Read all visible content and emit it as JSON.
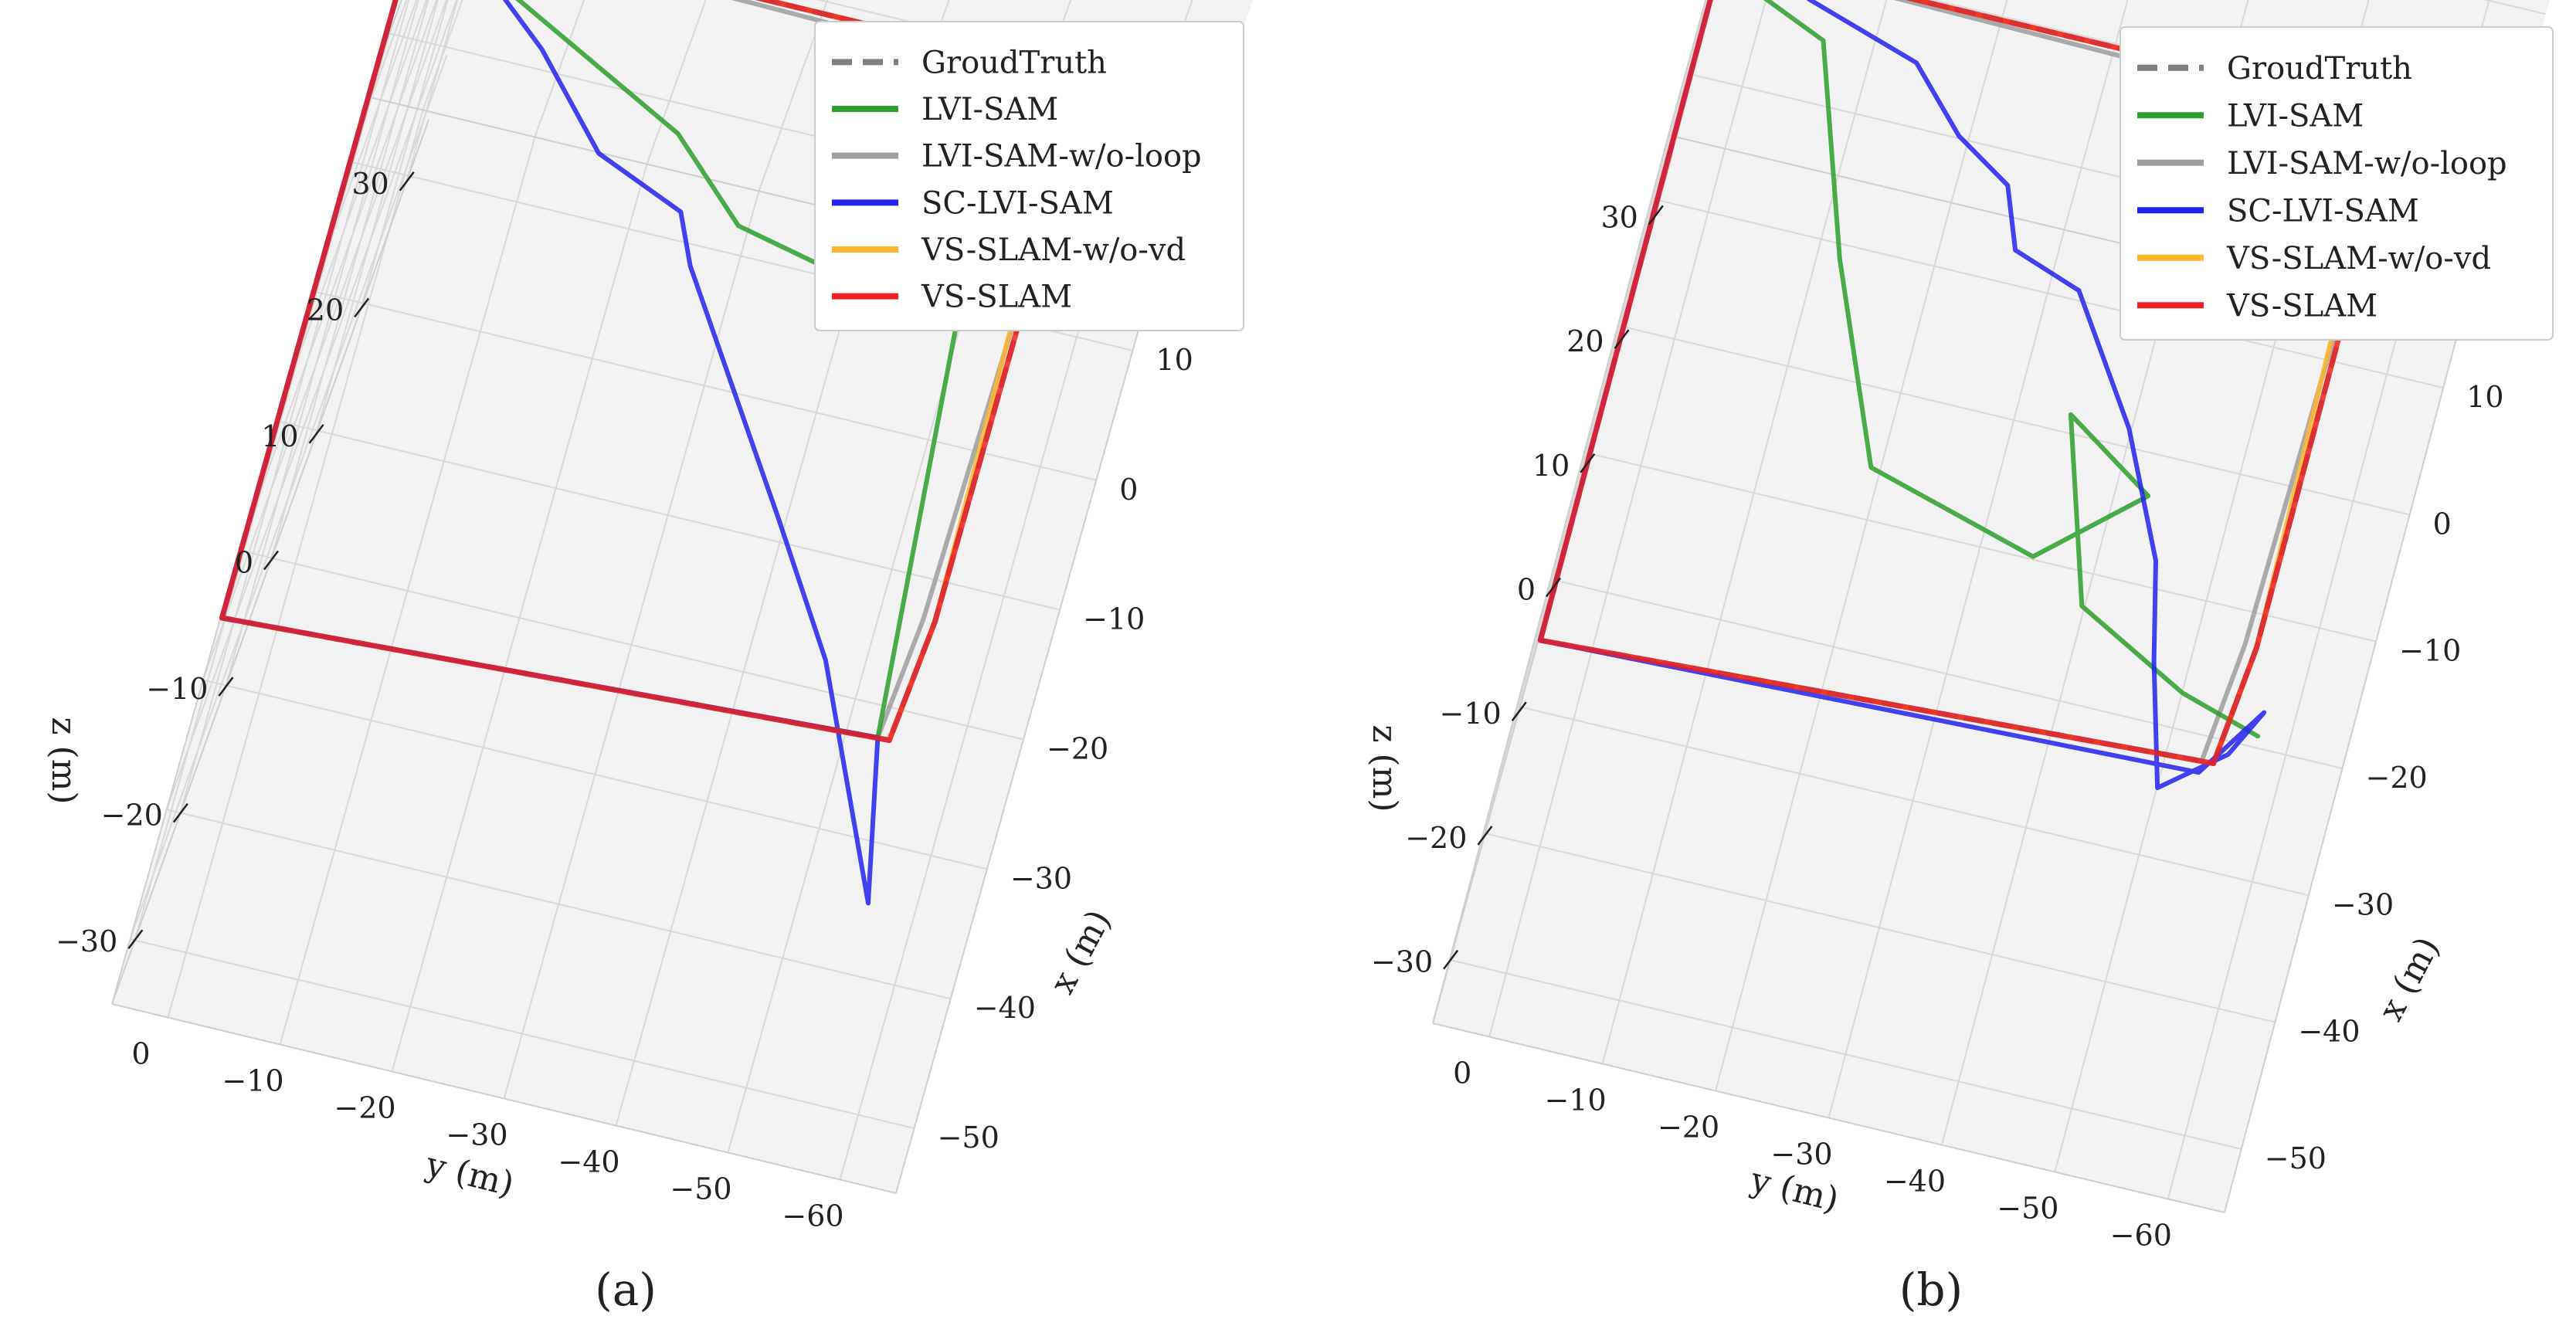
{
  "chart_data": [
    {
      "type": "line",
      "caption": "(a)",
      "xlabel": "x (m)",
      "ylabel": "y (m)",
      "zlabel": "z (m)",
      "x_ticks": [
        "10",
        "0",
        "−10",
        "−20",
        "−30",
        "−40",
        "−50"
      ],
      "y_ticks": [
        "0",
        "−10",
        "−20",
        "−30",
        "−40",
        "−50",
        "−60"
      ],
      "z_ticks": [
        "30",
        "20",
        "10",
        "0",
        "−10",
        "−20",
        "−30"
      ],
      "legend": [
        "GroudTruth",
        "LVI-SAM",
        "LVI-SAM-w/o-loop",
        "SC-LVI-SAM",
        "VS-SLAM-w/o-vd",
        "VS-SLAM"
      ],
      "colors": [
        "#7f7f7f",
        "#2ca02c",
        "#9e9e9e",
        "#2222ee",
        "#ffb62a",
        "#ee2222"
      ],
      "series": [
        {
          "name": "GroudTruth",
          "x": [
            7,
            10,
            10,
            -35,
            -45,
            -48,
            7
          ],
          "y": [
            -2,
            -2,
            -60,
            -60,
            -59,
            -2,
            -2
          ]
        },
        {
          "name": "LVI-SAM",
          "x": [
            7,
            10,
            -2,
            -8,
            -12,
            -45,
            -46,
            -48,
            7
          ],
          "y": [
            -2,
            -2,
            -28,
            -35,
            -55,
            -58,
            -40,
            -2,
            -2
          ]
        },
        {
          "name": "LVI-SAM-w/o-loop",
          "x": [
            7,
            10,
            9,
            -35,
            -45,
            -48,
            7
          ],
          "y": [
            -2,
            -2,
            -60,
            -59,
            -58,
            -2,
            -2
          ]
        },
        {
          "name": "SC-LVI-SAM",
          "x": [
            9,
            12,
            2,
            -5,
            -8,
            -12,
            -30,
            -40,
            -58,
            -45,
            -48,
            9
          ],
          "y": [
            -2,
            -2,
            -15,
            -22,
            -30,
            -32,
            -45,
            -52,
            -61,
            -58,
            -2,
            -2
          ]
        },
        {
          "name": "VS-SLAM-w/o-vd",
          "x": [
            7,
            10,
            10,
            -35,
            -45,
            -48,
            7
          ],
          "y": [
            -2,
            -2,
            -59,
            -60,
            -59,
            -2,
            -2
          ]
        },
        {
          "name": "VS-SLAM",
          "x": [
            7,
            10,
            10,
            -35,
            -45,
            -48,
            7
          ],
          "y": [
            -2,
            -2,
            -60,
            -60,
            -59,
            -2,
            -2
          ]
        }
      ]
    },
    {
      "type": "line",
      "caption": "(b)",
      "xlabel": "x (m)",
      "ylabel": "y (m)",
      "zlabel": "z (m)",
      "x_ticks": [
        "10",
        "0",
        "−10",
        "−20",
        "−30",
        "−40",
        "−50"
      ],
      "y_ticks": [
        "0",
        "−10",
        "−20",
        "−30",
        "−40",
        "−50",
        "−60"
      ],
      "z_ticks": [
        "30",
        "20",
        "10",
        "0",
        "−10",
        "−20",
        "−30"
      ],
      "legend": [
        "GroudTruth",
        "LVI-SAM",
        "LVI-SAM-w/o-loop",
        "SC-LVI-SAM",
        "VS-SLAM-w/o-vd",
        "VS-SLAM"
      ],
      "colors": [
        "#7f7f7f",
        "#2ca02c",
        "#9e9e9e",
        "#2222ee",
        "#ffb62a",
        "#ee2222"
      ],
      "series": [
        {
          "name": "GroudTruth",
          "x": [
            7,
            10,
            10,
            -35,
            -45,
            -48,
            7
          ],
          "y": [
            -2,
            -2,
            -60,
            -60,
            -59,
            -2,
            -2
          ]
        },
        {
          "name": "LVI-SAM",
          "x": [
            9,
            5,
            -12,
            -28,
            -32,
            -25,
            -20,
            -35,
            -40,
            -42
          ],
          "y": [
            -2,
            -12,
            -18,
            -25,
            -40,
            -48,
            -40,
            -45,
            -55,
            -62
          ]
        },
        {
          "name": "LVI-SAM-w/o-loop",
          "x": [
            7,
            10,
            9,
            -35,
            -45,
            -48,
            7
          ],
          "y": [
            -2,
            -2,
            -60,
            -59,
            -58,
            -2,
            -2
          ]
        },
        {
          "name": "SC-LVI-SAM",
          "x": [
            9,
            12,
            8,
            5,
            0,
            -3,
            -8,
            -10,
            -20,
            -30,
            -38,
            -48,
            -44,
            -40,
            -46,
            -48,
            9
          ],
          "y": [
            -2,
            -2,
            -10,
            -20,
            -25,
            -30,
            -32,
            -38,
            -45,
            -50,
            -52,
            -55,
            -60,
            -62,
            -58,
            -2,
            -2
          ]
        },
        {
          "name": "VS-SLAM-w/o-vd",
          "x": [
            7,
            10,
            10,
            -35,
            -45,
            -48,
            7
          ],
          "y": [
            -2,
            -2,
            -59,
            -60,
            -59,
            -2,
            -2
          ]
        },
        {
          "name": "VS-SLAM",
          "x": [
            7,
            10,
            10,
            -35,
            -45,
            -48,
            7
          ],
          "y": [
            -2,
            -2,
            -60,
            -60,
            -59,
            -2,
            -2
          ]
        }
      ]
    }
  ]
}
